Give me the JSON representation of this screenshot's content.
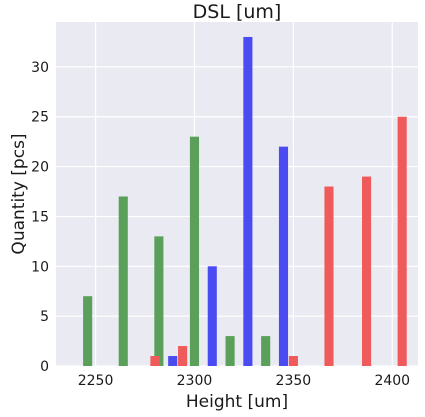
{
  "chart_data": {
    "type": "bar",
    "title": "DSL [um]",
    "xlabel": "Height [um]",
    "ylabel": "Quantity [pcs]",
    "xlim": [
      2230,
      2413
    ],
    "ylim": [
      0,
      34.5
    ],
    "xticks": [
      2250,
      2300,
      2350,
      2400
    ],
    "yticks": [
      0,
      5,
      10,
      15,
      20,
      25,
      30
    ],
    "grid": true,
    "bar_width_units": 4.6,
    "colors": {
      "plot_background": "#eaeaf2",
      "grid": "#ffffff",
      "green": "#5aa05a",
      "blue": "#4b4bf2",
      "red": "#ef5a5a"
    },
    "series": [
      {
        "color": "green",
        "x": [
          2246,
          2264,
          2282,
          2300,
          2318,
          2336
        ],
        "values": [
          7,
          17,
          13,
          23,
          3,
          3
        ]
      },
      {
        "color": "blue",
        "x": [
          2289,
          2309,
          2327,
          2345
        ],
        "values": [
          1,
          10,
          33,
          22
        ]
      },
      {
        "color": "red",
        "x": [
          2280,
          2294,
          2350,
          2368,
          2387,
          2405
        ],
        "values": [
          1,
          2,
          1,
          18,
          19,
          25
        ]
      }
    ]
  }
}
